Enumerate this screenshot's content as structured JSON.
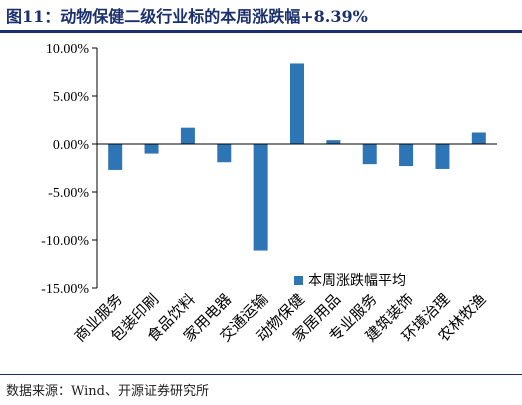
{
  "figure_title": "图11：动物保健二级行业标的本周涨跌幅+8.39%",
  "source_note": "数据来源：Wind、开源证券研究所",
  "colors": {
    "bar": "#2e75b6",
    "title": "#1a2f6e",
    "axis": "#000000"
  },
  "chart_data": {
    "type": "bar",
    "title": "",
    "xlabel": "",
    "ylabel": "",
    "ylim": [
      -15,
      10
    ],
    "ytick_values": [
      10,
      5,
      0,
      -5,
      -10,
      -15
    ],
    "ytick_labels": [
      "10.00%",
      "5.00%",
      "0.00%",
      "-5.00%",
      "-10.00%",
      "-15.00%"
    ],
    "categories": [
      "商业服务",
      "包装印刷",
      "食品饮料",
      "家用电器",
      "交通运输",
      "动物保健",
      "家居用品",
      "专业服务",
      "建筑装饰",
      "环境治理",
      "农林牧渔"
    ],
    "series": [
      {
        "name": "本周涨跌幅平均",
        "values": [
          -2.7,
          -1.0,
          1.7,
          -1.9,
          -11.1,
          8.39,
          0.4,
          -2.1,
          -2.3,
          -2.6,
          1.2
        ]
      }
    ],
    "legend_position": "bottom-right",
    "grid": false
  }
}
